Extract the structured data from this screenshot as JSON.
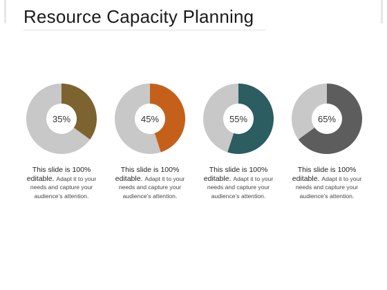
{
  "title": "Resource Capacity Planning",
  "chart_data": {
    "type": "donut",
    "items": [
      {
        "value": 35,
        "label": "35%",
        "color": "#7d6330"
      },
      {
        "value": 45,
        "label": "45%",
        "color": "#c5601a"
      },
      {
        "value": 55,
        "label": "55%",
        "color": "#2b5d61"
      },
      {
        "value": 65,
        "label": "65%",
        "color": "#5d5d5d"
      }
    ],
    "remainder_color": "#c8c8c8"
  },
  "captions": [
    {
      "line1": "This slide is 100%",
      "line2": "editable.",
      "rest": "Adapt it to your needs and capture your audience’s attention."
    },
    {
      "line1": "This slide is 100%",
      "line2": "editable.",
      "rest": "Adapt it to your needs and capture your audience’s attention."
    },
    {
      "line1": "This slide is 100%",
      "line2": "editable.",
      "rest": "Adapt it to your needs and capture your audience’s attention."
    },
    {
      "line1": "This slide is 100%",
      "line2": "editable.",
      "rest": "Adapt it to your needs and capture your audience’s attention."
    }
  ]
}
